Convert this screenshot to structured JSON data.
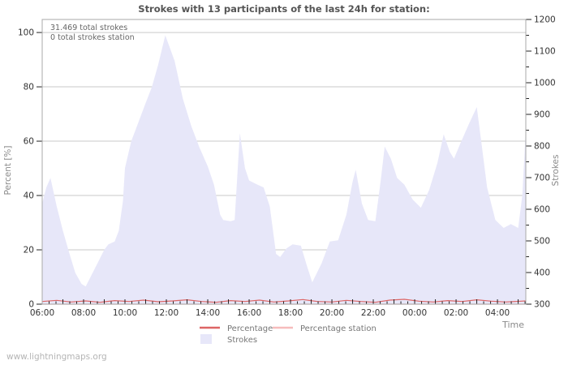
{
  "header": {
    "title": "Strokes with 13 participants of the last 24h for station:"
  },
  "annotations": {
    "total_strokes": "31.469 total strokes",
    "total_strokes_station": "0 total strokes station"
  },
  "watermark": "www.lightningmaps.org",
  "colors": {
    "area_fill": "#e7e7f9",
    "percentage_line": "#dd6565",
    "percentage_station_line": "#f6bcbc",
    "grid": "#c9c9c9",
    "plot_border": "#a8a8a8",
    "tick": "#222222",
    "tick_label": "#333333",
    "axis_title": "#8a8a8a",
    "title_text": "#555555",
    "annotation_text": "#666666",
    "legend_text": "#777777",
    "watermark_text": "#b5b5b5"
  },
  "chart_data": {
    "type": "area",
    "title": "Strokes with 13 participants of the last 24h for station:",
    "grid": "horizontal-only",
    "legend_position": "bottom-center",
    "x_axis": {
      "label": "Time",
      "tick_labels": [
        "06:00",
        "08:00",
        "10:00",
        "12:00",
        "14:00",
        "16:00",
        "18:00",
        "20:00",
        "22:00",
        "00:00",
        "02:00",
        "04:00"
      ],
      "tick_hours": [
        0,
        2,
        4,
        6,
        8,
        10,
        12,
        14,
        16,
        18,
        20,
        22
      ],
      "minor_tick_minutes": 20,
      "range_hours": [
        0,
        23.37
      ]
    },
    "y_axis_left": {
      "label": "Percent  [%]",
      "ticks": [
        0,
        20,
        40,
        60,
        80,
        100
      ],
      "range": [
        0,
        104.8
      ]
    },
    "y_axis_right": {
      "label": "Strokes",
      "ticks": [
        300,
        400,
        500,
        600,
        700,
        800,
        900,
        1000,
        1100,
        1200
      ],
      "minor_step": 50,
      "range": [
        300,
        1200
      ]
    },
    "series": [
      {
        "name": "Strokes",
        "kind": "area",
        "axis": "right",
        "points": [
          [
            0.0,
            618
          ],
          [
            0.2,
            669
          ],
          [
            0.4,
            699
          ],
          [
            0.7,
            609
          ],
          [
            1.0,
            532
          ],
          [
            1.3,
            463
          ],
          [
            1.6,
            399
          ],
          [
            1.9,
            364
          ],
          [
            2.1,
            356
          ],
          [
            2.4,
            394
          ],
          [
            2.7,
            433
          ],
          [
            3.0,
            472
          ],
          [
            3.2,
            489
          ],
          [
            3.5,
            498
          ],
          [
            3.7,
            532
          ],
          [
            3.9,
            626
          ],
          [
            4.0,
            730
          ],
          [
            4.3,
            815
          ],
          [
            4.7,
            884
          ],
          [
            5.0,
            936
          ],
          [
            5.3,
            987
          ],
          [
            5.6,
            1056
          ],
          [
            5.95,
            1150
          ],
          [
            6.4,
            1069
          ],
          [
            6.8,
            949
          ],
          [
            7.2,
            864
          ],
          [
            7.6,
            795
          ],
          [
            8.0,
            736
          ],
          [
            8.3,
            678
          ],
          [
            8.6,
            583
          ],
          [
            8.75,
            566
          ],
          [
            9.1,
            562
          ],
          [
            9.3,
            566
          ],
          [
            9.55,
            841
          ],
          [
            9.8,
            730
          ],
          [
            10.0,
            691
          ],
          [
            10.4,
            678
          ],
          [
            10.7,
            669
          ],
          [
            11.0,
            609
          ],
          [
            11.3,
            459
          ],
          [
            11.5,
            449
          ],
          [
            11.8,
            476
          ],
          [
            12.1,
            489
          ],
          [
            12.5,
            485
          ],
          [
            12.8,
            420
          ],
          [
            13.05,
            369
          ],
          [
            13.5,
            429
          ],
          [
            13.9,
            498
          ],
          [
            14.3,
            502
          ],
          [
            14.7,
            583
          ],
          [
            15.0,
            687
          ],
          [
            15.15,
            725
          ],
          [
            15.45,
            618
          ],
          [
            15.75,
            566
          ],
          [
            16.1,
            562
          ],
          [
            16.35,
            687
          ],
          [
            16.55,
            798
          ],
          [
            16.85,
            760
          ],
          [
            17.15,
            699
          ],
          [
            17.5,
            678
          ],
          [
            17.9,
            631
          ],
          [
            18.3,
            605
          ],
          [
            18.7,
            661
          ],
          [
            19.1,
            747
          ],
          [
            19.4,
            837
          ],
          [
            19.7,
            781
          ],
          [
            19.9,
            760
          ],
          [
            20.2,
            807
          ],
          [
            20.6,
            867
          ],
          [
            21.0,
            923
          ],
          [
            21.25,
            798
          ],
          [
            21.5,
            669
          ],
          [
            21.9,
            566
          ],
          [
            22.3,
            541
          ],
          [
            22.65,
            553
          ],
          [
            23.0,
            541
          ],
          [
            23.2,
            644
          ],
          [
            23.37,
            854
          ]
        ]
      },
      {
        "name": "Percentage",
        "kind": "line",
        "axis": "left",
        "points": [
          [
            0,
            1.0
          ],
          [
            0.7,
            1.4
          ],
          [
            1.4,
            0.8
          ],
          [
            2.1,
            1.2
          ],
          [
            2.8,
            0.7
          ],
          [
            3.5,
            1.3
          ],
          [
            4.2,
            1.0
          ],
          [
            4.9,
            1.5
          ],
          [
            5.6,
            0.9
          ],
          [
            6.3,
            1.2
          ],
          [
            7.0,
            1.6
          ],
          [
            7.7,
            1.0
          ],
          [
            8.4,
            0.7
          ],
          [
            9.1,
            1.3
          ],
          [
            9.8,
            1.0
          ],
          [
            10.5,
            1.5
          ],
          [
            11.2,
            0.8
          ],
          [
            11.9,
            1.2
          ],
          [
            12.6,
            1.7
          ],
          [
            13.3,
            1.0
          ],
          [
            14.0,
            0.8
          ],
          [
            14.7,
            1.4
          ],
          [
            15.4,
            1.0
          ],
          [
            16.1,
            0.7
          ],
          [
            16.8,
            1.5
          ],
          [
            17.5,
            1.8
          ],
          [
            18.2,
            1.1
          ],
          [
            18.9,
            0.8
          ],
          [
            19.6,
            1.3
          ],
          [
            20.3,
            1.0
          ],
          [
            21.0,
            1.6
          ],
          [
            21.7,
            1.1
          ],
          [
            22.4,
            0.8
          ],
          [
            23.37,
            1.2
          ]
        ]
      },
      {
        "name": "Percentage station",
        "kind": "line",
        "axis": "left",
        "points": [
          [
            0,
            0
          ],
          [
            23.37,
            0
          ]
        ]
      }
    ]
  }
}
